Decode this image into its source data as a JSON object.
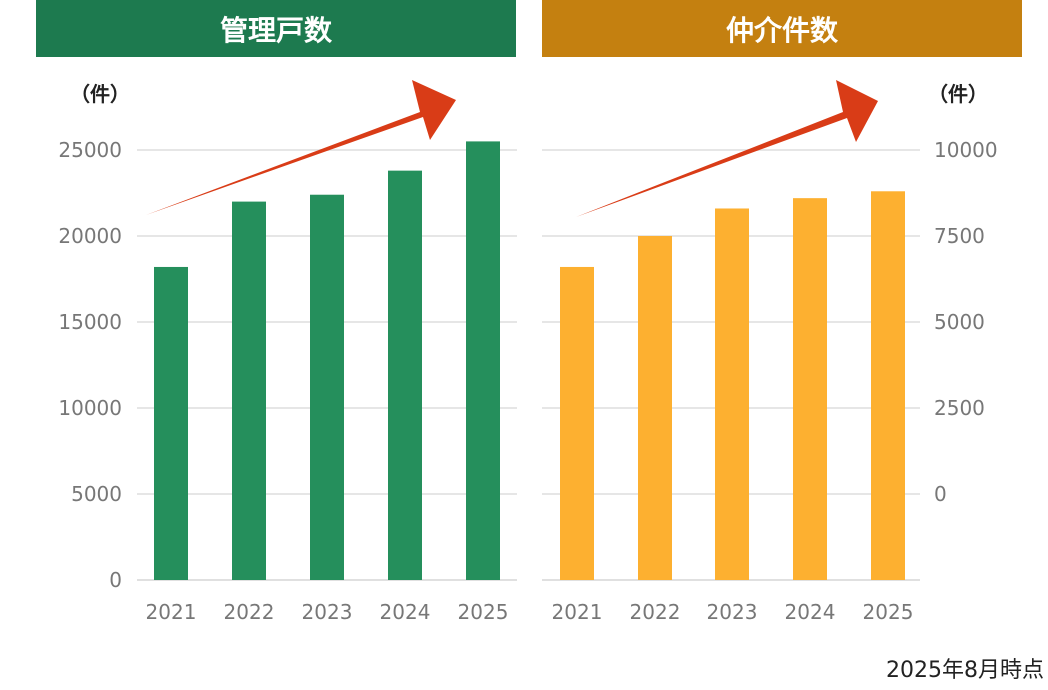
{
  "colors": {
    "header_left": "#1d7a4f",
    "header_right": "#c48010",
    "bar_left": "#258f5c",
    "bar_right": "#fdb030",
    "arrow": "#d93c17",
    "grid": "#e6e6e6",
    "tick_text": "#777777"
  },
  "footnote": "2025年8月時点",
  "chart_data": [
    {
      "type": "bar",
      "title": "管理戸数",
      "ylabel": "（件）",
      "categories": [
        "2021",
        "2022",
        "2023",
        "2024",
        "2025"
      ],
      "values": [
        18200,
        22000,
        22400,
        23800,
        25500
      ],
      "ylim": [
        0,
        25000
      ],
      "yticks": [
        "0",
        "5000",
        "10000",
        "15000",
        "20000",
        "25000"
      ],
      "ytick_values": [
        0,
        5000,
        10000,
        15000,
        20000,
        25000
      ],
      "yaxis_side": "left",
      "grid": true,
      "trend_arrow": true
    },
    {
      "type": "bar",
      "title": "仲介件数",
      "ylabel": "（件）",
      "categories": [
        "2021",
        "2022",
        "2023",
        "2024",
        "2025"
      ],
      "values": [
        6600,
        7500,
        8300,
        8600,
        8800
      ],
      "ylim": [
        -2500,
        10000
      ],
      "yticks": [
        "0",
        "2500",
        "5000",
        "7500",
        "10000"
      ],
      "ytick_values": [
        0,
        2500,
        5000,
        7500,
        10000
      ],
      "yaxis_side": "right",
      "grid": true,
      "trend_arrow": true
    }
  ]
}
